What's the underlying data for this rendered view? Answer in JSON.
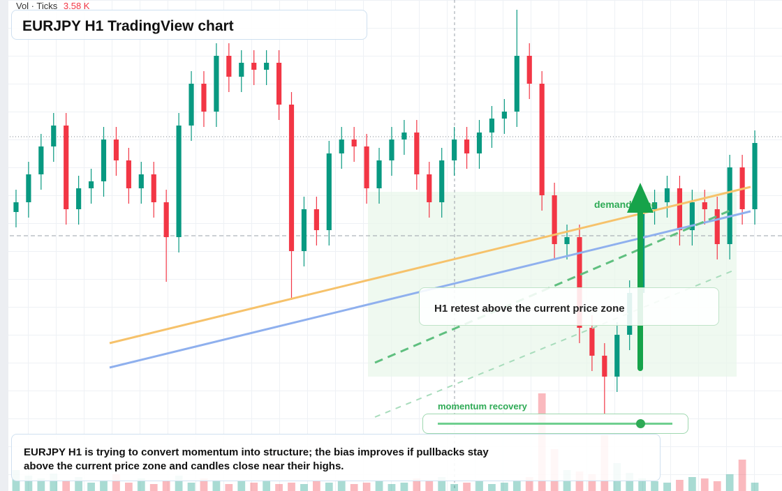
{
  "header": {
    "vol_label": "Vol · Ticks",
    "vol_value": "3.58 K",
    "title": "EURJPY H1 TradingView chart"
  },
  "chart_data": {
    "type": "candlestick",
    "ylim": [
      0,
      704
    ],
    "up_color": "#089981",
    "down_color": "#f23645",
    "open": [
      400,
      414,
      454,
      494,
      524,
      404,
      434,
      444,
      504,
      474,
      434,
      454,
      414,
      364,
      524,
      584,
      544,
      624,
      594,
      614,
      604,
      614,
      554,
      344,
      404,
      374,
      484,
      504,
      494,
      434,
      474,
      504,
      514,
      454,
      414,
      474,
      504,
      484,
      514,
      534,
      544,
      624,
      584,
      424,
      354,
      364,
      234,
      194,
      164,
      224,
      284,
      404,
      414,
      434,
      374,
      414,
      404,
      354,
      464,
      404
    ],
    "high": [
      432,
      472,
      512,
      542,
      542,
      452,
      462,
      522,
      522,
      492,
      472,
      472,
      432,
      542,
      602,
      602,
      642,
      642,
      632,
      632,
      632,
      632,
      572,
      422,
      422,
      502,
      522,
      522,
      512,
      492,
      522,
      532,
      532,
      472,
      492,
      522,
      522,
      532,
      552,
      562,
      690,
      642,
      602,
      442,
      382,
      382,
      252,
      212,
      242,
      302,
      422,
      432,
      452,
      452,
      432,
      432,
      422,
      482,
      482,
      517
    ],
    "low": [
      378,
      392,
      432,
      472,
      382,
      382,
      412,
      422,
      452,
      412,
      412,
      392,
      300,
      342,
      502,
      522,
      522,
      572,
      572,
      582,
      582,
      532,
      274,
      322,
      352,
      352,
      462,
      472,
      412,
      412,
      452,
      482,
      432,
      392,
      392,
      452,
      462,
      462,
      492,
      512,
      522,
      562,
      402,
      332,
      332,
      212,
      172,
      110,
      142,
      202,
      262,
      382,
      392,
      352,
      352,
      382,
      332,
      332,
      382,
      382
    ],
    "close": [
      414,
      454,
      494,
      524,
      404,
      434,
      444,
      504,
      474,
      434,
      454,
      414,
      364,
      524,
      584,
      544,
      624,
      594,
      614,
      604,
      614,
      554,
      344,
      404,
      374,
      484,
      504,
      494,
      434,
      474,
      504,
      514,
      454,
      414,
      474,
      504,
      484,
      514,
      534,
      544,
      624,
      584,
      424,
      354,
      364,
      234,
      194,
      164,
      224,
      284,
      404,
      414,
      434,
      374,
      414,
      404,
      354,
      464,
      404,
      499
    ],
    "volume": [
      30,
      22,
      18,
      25,
      14,
      20,
      12,
      16,
      24,
      12,
      18,
      10,
      14,
      22,
      12,
      18,
      16,
      10,
      14,
      12,
      16,
      10,
      12,
      10,
      14,
      12,
      16,
      10,
      12,
      14,
      10,
      12,
      18,
      14,
      20,
      10,
      12,
      14,
      10,
      12,
      16,
      20,
      140,
      60,
      30,
      28,
      24,
      80,
      40,
      26,
      18,
      14,
      12,
      16,
      20,
      18,
      14,
      24,
      45,
      12
    ]
  },
  "annotations": {
    "zone_label": "demand zone",
    "retest": "H1 retest above the current price zone",
    "momentum": "momentum recovery",
    "summary": "EURJPY H1 is trying to convert momentum into structure; the bias improves if pullbacks stay above the current price zone and candles close near their highs."
  }
}
